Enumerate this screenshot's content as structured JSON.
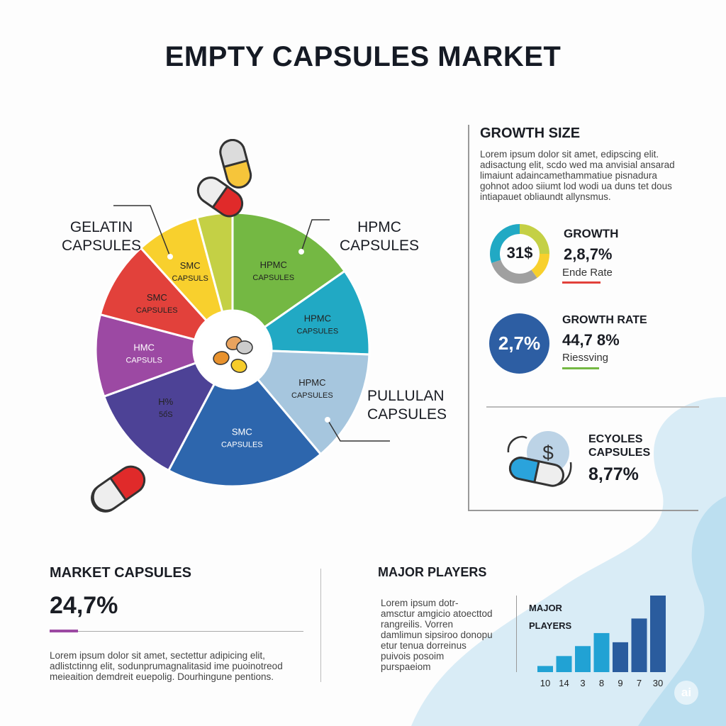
{
  "title": "EMPTY CAPSULES MARKET",
  "colors": {
    "green": "#74b843",
    "teal": "#21a9c4",
    "light_blue": "#a6c6de",
    "blue": "#2d66ad",
    "indigo": "#4d4296",
    "purple": "#9c49a3",
    "red": "#e2413b",
    "yellow": "#f8d02d",
    "lime": "#c4d045",
    "accent_red": "#e2413b",
    "accent_green": "#74b843",
    "accent_purple": "#9c49a3"
  },
  "chart_data": [
    {
      "type": "pie",
      "style": "donut",
      "callouts": [
        "GELATIN CAPSULES",
        "HPMC CAPSULES",
        "PULLULAN CAPSULES"
      ],
      "slices": [
        {
          "label": "HPMC CAPSULES",
          "value": 15.3,
          "color": "#74b843"
        },
        {
          "label": "HPMC CAPSULES",
          "value": 10.3,
          "color": "#21a9c4"
        },
        {
          "label": "HPMC CAPSULES",
          "value": 13.3,
          "color": "#a6c6de"
        },
        {
          "label": "SMC CAPSULES",
          "value": 18.9,
          "color": "#2d66ad"
        },
        {
          "label": "H% 5ổS",
          "value": 11.7,
          "color": "#4d4296"
        },
        {
          "label": "HMC CAPSULS",
          "value": 9.7,
          "color": "#9c49a3"
        },
        {
          "label": "SMC CAPSULES",
          "value": 9.2,
          "color": "#e2413b"
        },
        {
          "label": "SMC CAPSULS",
          "value": 7.5,
          "color": "#f8d02d"
        },
        {
          "label": "",
          "value": 4.2,
          "color": "#c4d045"
        }
      ]
    },
    {
      "type": "bar",
      "title": "MAJOR PLAYERS",
      "categories": [
        "10",
        "14",
        "3",
        "8",
        "9",
        "7",
        "30"
      ],
      "values": [
        8,
        21,
        34,
        51,
        39,
        70,
        100
      ],
      "colors": [
        "#21a2d4",
        "#21a2d4",
        "#21a2d4",
        "#21a2d4",
        "#2a5c9e",
        "#2a5c9e",
        "#2a5c9e"
      ]
    }
  ],
  "growth_size": {
    "heading": "GROWTH SIZE",
    "text": "Lorem ipsum dolor sit amet, edipscing elit. adisactung elit, scdo wed ma anvisial ansarad limaiunt adaincamethammatiue pisnadura gohnot adoo siiumt lod wodi ua duns tet dous intiapauet obliaundt allynsmus.",
    "donut_value": "31$",
    "donut_segments": [
      {
        "color": "#c4d045",
        "value": 25
      },
      {
        "color": "#f8d02d",
        "value": 15
      },
      {
        "color": "#a0a0a0",
        "value": 30
      },
      {
        "color": "#21a9c4",
        "value": 30
      }
    ],
    "stat1": {
      "label": "GROWTH",
      "value": "2,8,7%",
      "sub": "Ende Rate"
    },
    "circle_value": "2,7%",
    "stat2": {
      "label": "GROWTH RATE",
      "value": "44,7 8%",
      "sub": "Riessving"
    }
  },
  "ecycles": {
    "label1": "ECYOLES",
    "label2": "CAPSULES",
    "value": "8,77%",
    "icon": "dollar-capsule-icon"
  },
  "market": {
    "heading": "MARKET CAPSULES",
    "value": "24,7%",
    "text": "Lorem ipsum dolor sit amet, sectettur adipicing elit, adlistctinng elit, sodunprumagnalitasid ime puoinotreod meieaition demdreit euepolig. Dourhingune pentions."
  },
  "players": {
    "heading": "MAJOR PLAYERS",
    "text": "Lorem ipsum dotr- amsctur amgicio atoecttod rangreilis. Vorren damlimun sipsiroo donopu etur tenua dorreinus puivois posoim purspaeiom",
    "chart_title_1": "MAJOR",
    "chart_title_2": "PLAYERS"
  },
  "badge": "ai"
}
